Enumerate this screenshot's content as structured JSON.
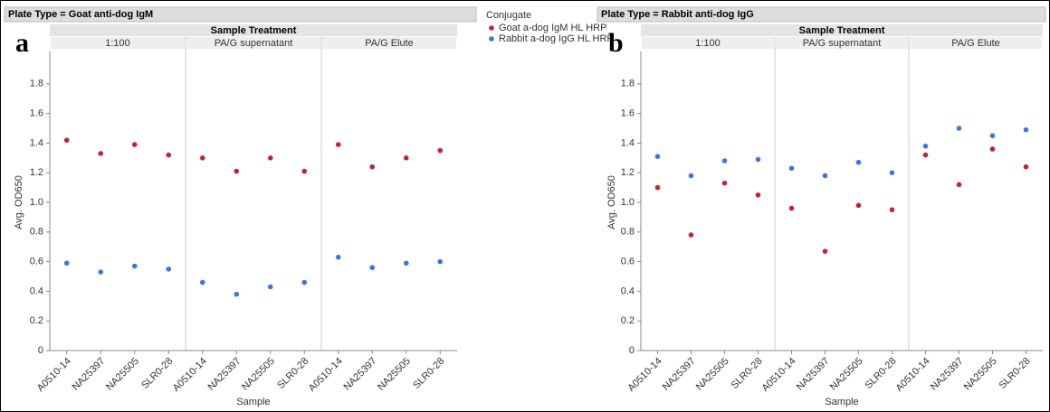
{
  "chart_data": [
    {
      "type": "scatter",
      "panel_label": "a",
      "title": "Plate Type = Goat anti-dog IgM",
      "facet_title": "Sample Treatment",
      "facets": [
        "1:100",
        "PA/G supernatant",
        "PA/G Elute"
      ],
      "categories": [
        "A0510-14",
        "NA25397",
        "NA25505",
        "SLR0-28"
      ],
      "x_label": "Sample",
      "y_label": "Avg. OD650",
      "ylim": [
        0,
        2
      ],
      "yticks": [
        0,
        0.2,
        0.4,
        0.6,
        0.8,
        {
          "value": 1,
          "label": "1.0"
        },
        1.2,
        1.4,
        1.6,
        1.8
      ],
      "legend_title": "Conjugate",
      "series": [
        {
          "name": "Goat a-dog IgM HL HRP",
          "color": "#c8202f",
          "values": [
            1.42,
            1.33,
            1.39,
            1.32,
            1.3,
            1.21,
            1.3,
            1.21,
            1.39,
            1.24,
            1.3,
            1.35
          ]
        },
        {
          "name": "Rabbit a-dog IgG HL HRP",
          "color": "#3b74e8",
          "values": [
            0.59,
            0.53,
            0.57,
            0.55,
            0.46,
            0.38,
            0.43,
            0.46,
            0.63,
            0.56,
            0.59,
            0.6
          ]
        }
      ]
    },
    {
      "type": "scatter",
      "panel_label": "b",
      "title": "Plate Type = Rabbit anti-dog IgG",
      "facet_title": "Sample Treatment",
      "facets": [
        "1:100",
        "PA/G supernatant",
        "PA/G Elute"
      ],
      "categories": [
        "A0510-14",
        "NA25397",
        "NA25505",
        "SLR0-28"
      ],
      "x_label": "Sample",
      "y_label": "Avg. OD650",
      "ylim": [
        0,
        2
      ],
      "yticks": [
        0,
        0.2,
        0.4,
        0.6,
        0.8,
        {
          "value": 1,
          "label": "1.0"
        },
        1.2,
        1.4,
        1.6,
        1.8
      ],
      "series": [
        {
          "color": "#c8202f",
          "values": [
            1.1,
            0.78,
            1.13,
            1.05,
            0.96,
            0.67,
            0.98,
            0.95,
            1.32,
            1.12,
            1.36,
            1.24
          ]
        },
        {
          "color": "#3b74e8",
          "values": [
            1.31,
            1.18,
            1.28,
            1.29,
            1.23,
            1.18,
            1.27,
            1.2,
            1.38,
            1.5,
            1.45,
            1.49
          ]
        }
      ]
    }
  ]
}
